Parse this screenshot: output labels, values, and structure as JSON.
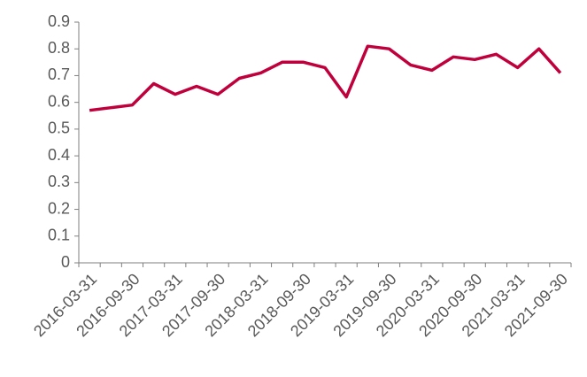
{
  "chart_data": {
    "type": "line",
    "categories": [
      "2016-03-31",
      null,
      "2016-09-30",
      null,
      "2017-03-31",
      null,
      "2017-09-30",
      null,
      "2018-03-31",
      null,
      "2018-09-30",
      null,
      "2019-03-31",
      null,
      "2019-09-30",
      null,
      "2020-03-31",
      null,
      "2020-09-30",
      null,
      "2021-03-31",
      null,
      "2021-09-30"
    ],
    "values": [
      0.57,
      0.58,
      0.59,
      0.67,
      0.63,
      0.66,
      0.63,
      0.69,
      0.71,
      0.75,
      0.75,
      0.73,
      0.62,
      0.81,
      0.8,
      0.74,
      0.72,
      0.77,
      0.76,
      0.78,
      0.73,
      0.8,
      0.71
    ],
    "color": "#c0003c",
    "ylim": [
      0,
      0.9
    ],
    "yticks": [
      0,
      0.1,
      0.2,
      0.3,
      0.4,
      0.5,
      0.6,
      0.7,
      0.8,
      0.9
    ]
  }
}
